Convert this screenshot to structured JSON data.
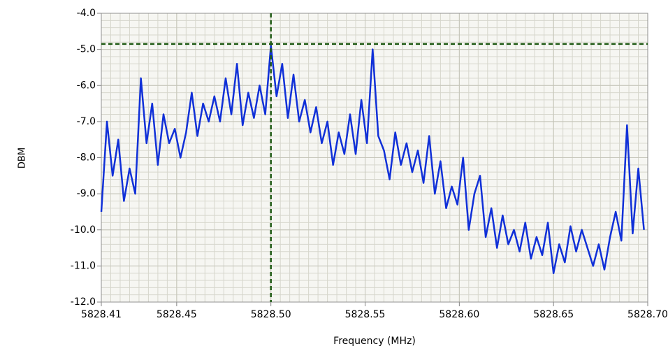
{
  "chart_data": {
    "type": "line",
    "xlabel": "Frequency (MHz)",
    "ylabel": "DBM",
    "xlim": [
      5828.41,
      5828.7
    ],
    "ylim": [
      -12,
      -4
    ],
    "xticks": [
      5828.41,
      5828.45,
      {
        "value": 5828.5,
        "label": "5828.50"
      },
      5828.55,
      {
        "value": 5828.6,
        "label": "5828.60"
      },
      5828.65,
      {
        "value": 5828.7,
        "label": "5828.70"
      }
    ],
    "yticks": [
      {
        "value": -4,
        "label": "-4.0"
      },
      {
        "value": -5,
        "label": "-5.0"
      },
      {
        "value": -6,
        "label": "-6.0"
      },
      {
        "value": -7,
        "label": "-7.0"
      },
      {
        "value": -8,
        "label": "-8.0"
      },
      {
        "value": -9,
        "label": "-9.0"
      },
      {
        "value": -10,
        "label": "-10.0"
      },
      {
        "value": -11,
        "label": "-11.0"
      },
      {
        "value": -12,
        "label": "-12.0"
      }
    ],
    "grid": true,
    "cursor": {
      "x": 5828.5,
      "y": -4.85,
      "color": "#1f5a14"
    },
    "x": [
      5828.41,
      5828.413,
      5828.416,
      5828.419,
      5828.422,
      5828.425,
      5828.428,
      5828.431,
      5828.434,
      5828.437,
      5828.44,
      5828.443,
      5828.446,
      5828.449,
      5828.452,
      5828.455,
      5828.458,
      5828.461,
      5828.464,
      5828.467,
      5828.47,
      5828.473,
      5828.476,
      5828.479,
      5828.482,
      5828.485,
      5828.488,
      5828.491,
      5828.494,
      5828.497,
      5828.5,
      5828.503,
      5828.506,
      5828.509,
      5828.512,
      5828.515,
      5828.518,
      5828.521,
      5828.524,
      5828.527,
      5828.53,
      5828.533,
      5828.536,
      5828.539,
      5828.542,
      5828.545,
      5828.548,
      5828.551,
      5828.554,
      5828.557,
      5828.56,
      5828.563,
      5828.566,
      5828.569,
      5828.572,
      5828.575,
      5828.578,
      5828.581,
      5828.584,
      5828.587,
      5828.59,
      5828.593,
      5828.596,
      5828.599,
      5828.602,
      5828.605,
      5828.608,
      5828.611,
      5828.614,
      5828.617,
      5828.62,
      5828.623,
      5828.626,
      5828.629,
      5828.632,
      5828.635,
      5828.638,
      5828.641,
      5828.644,
      5828.647,
      5828.65,
      5828.653,
      5828.656,
      5828.659,
      5828.662,
      5828.665,
      5828.668,
      5828.671,
      5828.674,
      5828.677,
      5828.68,
      5828.683,
      5828.686,
      5828.689,
      5828.692,
      5828.695,
      5828.698
    ],
    "series": [
      {
        "color": "#1030d8",
        "values": [
          -9.5,
          -7.0,
          -8.5,
          -7.5,
          -9.2,
          -8.3,
          -9.0,
          -5.8,
          -7.6,
          -6.5,
          -8.2,
          -6.8,
          -7.6,
          -7.2,
          -8.0,
          -7.3,
          -6.2,
          -7.4,
          -6.5,
          -7.0,
          -6.3,
          -7.0,
          -5.8,
          -6.8,
          -5.4,
          -7.1,
          -6.2,
          -6.9,
          -6.0,
          -6.8,
          -4.9,
          -6.3,
          -5.4,
          -6.9,
          -5.7,
          -7.0,
          -6.4,
          -7.3,
          -6.6,
          -7.6,
          -7.0,
          -8.2,
          -7.3,
          -7.9,
          -6.8,
          -7.9,
          -6.4,
          -7.6,
          -5.0,
          -7.4,
          -7.8,
          -8.6,
          -7.3,
          -8.2,
          -7.6,
          -8.4,
          -7.8,
          -8.7,
          -7.4,
          -9.0,
          -8.1,
          -9.4,
          -8.8,
          -9.3,
          -8.0,
          -10.0,
          -9.0,
          -8.5,
          -10.2,
          -9.4,
          -10.5,
          -9.6,
          -10.4,
          -10.0,
          -10.6,
          -9.8,
          -10.8,
          -10.2,
          -10.7,
          -9.8,
          -11.2,
          -10.4,
          -10.9,
          -9.9,
          -10.6,
          -10.0,
          -10.5,
          -11.0,
          -10.4,
          -11.1,
          -10.2,
          -9.5,
          -10.3,
          -7.1,
          -10.1,
          -8.3,
          -10.0
        ]
      }
    ]
  }
}
